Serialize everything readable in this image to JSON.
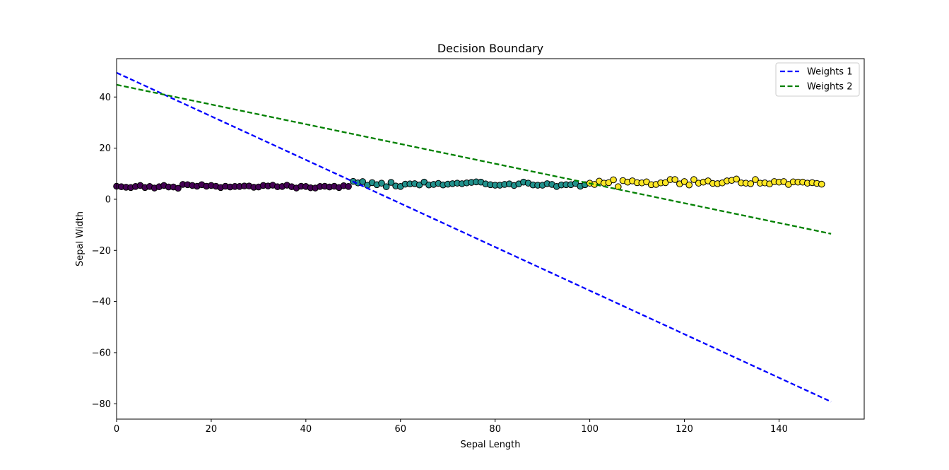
{
  "chart_data": {
    "type": "scatter",
    "title": "Decision Boundary",
    "xlabel": "Sepal Length",
    "ylabel": "Sepal Width",
    "xlim": [
      0,
      158
    ],
    "ylim": [
      -86,
      55
    ],
    "xticks": [
      0,
      20,
      40,
      60,
      80,
      100,
      120,
      140
    ],
    "yticks": [
      -80,
      -60,
      -40,
      -20,
      0,
      20,
      40
    ],
    "xtick_labels": [
      "0",
      "20",
      "40",
      "60",
      "80",
      "100",
      "120",
      "140"
    ],
    "ytick_labels": [
      "−80",
      "−60",
      "−40",
      "−20",
      "0",
      "20",
      "40"
    ],
    "grid": false,
    "legend_position": "top-right",
    "class_colors": [
      "#440154",
      "#21918c",
      "#fde725"
    ],
    "points": [
      [
        0,
        5.1,
        0
      ],
      [
        1,
        4.9,
        0
      ],
      [
        2,
        4.7,
        0
      ],
      [
        3,
        4.6,
        0
      ],
      [
        4,
        5.0,
        0
      ],
      [
        5,
        5.4,
        0
      ],
      [
        6,
        4.6,
        0
      ],
      [
        7,
        5.0,
        0
      ],
      [
        8,
        4.4,
        0
      ],
      [
        9,
        4.9,
        0
      ],
      [
        10,
        5.4,
        0
      ],
      [
        11,
        4.8,
        0
      ],
      [
        12,
        4.8,
        0
      ],
      [
        13,
        4.3,
        0
      ],
      [
        14,
        5.8,
        0
      ],
      [
        15,
        5.7,
        0
      ],
      [
        16,
        5.4,
        0
      ],
      [
        17,
        5.1,
        0
      ],
      [
        18,
        5.7,
        0
      ],
      [
        19,
        5.1,
        0
      ],
      [
        20,
        5.4,
        0
      ],
      [
        21,
        5.1,
        0
      ],
      [
        22,
        4.6,
        0
      ],
      [
        23,
        5.1,
        0
      ],
      [
        24,
        4.8,
        0
      ],
      [
        25,
        5.0,
        0
      ],
      [
        26,
        5.0,
        0
      ],
      [
        27,
        5.2,
        0
      ],
      [
        28,
        5.2,
        0
      ],
      [
        29,
        4.7,
        0
      ],
      [
        30,
        4.8,
        0
      ],
      [
        31,
        5.4,
        0
      ],
      [
        32,
        5.2,
        0
      ],
      [
        33,
        5.5,
        0
      ],
      [
        34,
        4.9,
        0
      ],
      [
        35,
        5.0,
        0
      ],
      [
        36,
        5.5,
        0
      ],
      [
        37,
        4.9,
        0
      ],
      [
        38,
        4.4,
        0
      ],
      [
        39,
        5.1,
        0
      ],
      [
        40,
        5.0,
        0
      ],
      [
        41,
        4.5,
        0
      ],
      [
        42,
        4.4,
        0
      ],
      [
        43,
        5.0,
        0
      ],
      [
        44,
        5.1,
        0
      ],
      [
        45,
        4.8,
        0
      ],
      [
        46,
        5.1,
        0
      ],
      [
        47,
        4.6,
        0
      ],
      [
        48,
        5.3,
        0
      ],
      [
        49,
        5.0,
        0
      ],
      [
        50,
        7.0,
        1
      ],
      [
        51,
        6.4,
        1
      ],
      [
        52,
        6.9,
        1
      ],
      [
        53,
        5.5,
        1
      ],
      [
        54,
        6.5,
        1
      ],
      [
        55,
        5.7,
        1
      ],
      [
        56,
        6.3,
        1
      ],
      [
        57,
        4.9,
        1
      ],
      [
        58,
        6.6,
        1
      ],
      [
        59,
        5.2,
        1
      ],
      [
        60,
        5.0,
        1
      ],
      [
        61,
        5.9,
        1
      ],
      [
        62,
        6.0,
        1
      ],
      [
        63,
        6.1,
        1
      ],
      [
        64,
        5.6,
        1
      ],
      [
        65,
        6.7,
        1
      ],
      [
        66,
        5.6,
        1
      ],
      [
        67,
        5.8,
        1
      ],
      [
        68,
        6.2,
        1
      ],
      [
        69,
        5.6,
        1
      ],
      [
        70,
        5.9,
        1
      ],
      [
        71,
        6.1,
        1
      ],
      [
        72,
        6.3,
        1
      ],
      [
        73,
        6.1,
        1
      ],
      [
        74,
        6.4,
        1
      ],
      [
        75,
        6.6,
        1
      ],
      [
        76,
        6.8,
        1
      ],
      [
        77,
        6.7,
        1
      ],
      [
        78,
        6.0,
        1
      ],
      [
        79,
        5.7,
        1
      ],
      [
        80,
        5.5,
        1
      ],
      [
        81,
        5.5,
        1
      ],
      [
        82,
        5.8,
        1
      ],
      [
        83,
        6.0,
        1
      ],
      [
        84,
        5.4,
        1
      ],
      [
        85,
        6.0,
        1
      ],
      [
        86,
        6.7,
        1
      ],
      [
        87,
        6.3,
        1
      ],
      [
        88,
        5.6,
        1
      ],
      [
        89,
        5.5,
        1
      ],
      [
        90,
        5.5,
        1
      ],
      [
        91,
        6.1,
        1
      ],
      [
        92,
        5.8,
        1
      ],
      [
        93,
        5.0,
        1
      ],
      [
        94,
        5.6,
        1
      ],
      [
        95,
        5.7,
        1
      ],
      [
        96,
        5.7,
        1
      ],
      [
        97,
        6.2,
        1
      ],
      [
        98,
        5.1,
        1
      ],
      [
        99,
        5.7,
        1
      ],
      [
        100,
        6.3,
        2
      ],
      [
        101,
        5.8,
        2
      ],
      [
        102,
        7.1,
        2
      ],
      [
        103,
        6.3,
        2
      ],
      [
        104,
        6.5,
        2
      ],
      [
        105,
        7.6,
        2
      ],
      [
        106,
        4.9,
        2
      ],
      [
        107,
        7.3,
        2
      ],
      [
        108,
        6.7,
        2
      ],
      [
        109,
        7.2,
        2
      ],
      [
        110,
        6.5,
        2
      ],
      [
        111,
        6.4,
        2
      ],
      [
        112,
        6.8,
        2
      ],
      [
        113,
        5.7,
        2
      ],
      [
        114,
        5.8,
        2
      ],
      [
        115,
        6.4,
        2
      ],
      [
        116,
        6.5,
        2
      ],
      [
        117,
        7.7,
        2
      ],
      [
        118,
        7.7,
        2
      ],
      [
        119,
        6.0,
        2
      ],
      [
        120,
        6.9,
        2
      ],
      [
        121,
        5.6,
        2
      ],
      [
        122,
        7.7,
        2
      ],
      [
        123,
        6.3,
        2
      ],
      [
        124,
        6.7,
        2
      ],
      [
        125,
        7.2,
        2
      ],
      [
        126,
        6.2,
        2
      ],
      [
        127,
        6.1,
        2
      ],
      [
        128,
        6.4,
        2
      ],
      [
        129,
        7.2,
        2
      ],
      [
        130,
        7.4,
        2
      ],
      [
        131,
        7.9,
        2
      ],
      [
        132,
        6.4,
        2
      ],
      [
        133,
        6.3,
        2
      ],
      [
        134,
        6.1,
        2
      ],
      [
        135,
        7.7,
        2
      ],
      [
        136,
        6.3,
        2
      ],
      [
        137,
        6.4,
        2
      ],
      [
        138,
        6.0,
        2
      ],
      [
        139,
        6.9,
        2
      ],
      [
        140,
        6.7,
        2
      ],
      [
        141,
        6.9,
        2
      ],
      [
        142,
        5.8,
        2
      ],
      [
        143,
        6.8,
        2
      ],
      [
        144,
        6.7,
        2
      ],
      [
        145,
        6.7,
        2
      ],
      [
        146,
        6.3,
        2
      ],
      [
        147,
        6.5,
        2
      ],
      [
        148,
        6.2,
        2
      ],
      [
        149,
        5.9,
        2
      ]
    ],
    "series": [
      {
        "name": "Weights 1",
        "type": "line",
        "style": "dashed",
        "color": "#0000ff",
        "x": [
          0,
          151
        ],
        "y": [
          49.5,
          -79.2
        ]
      },
      {
        "name": "Weights 2",
        "type": "line",
        "style": "dashed",
        "color": "#008000",
        "x": [
          0,
          151
        ],
        "y": [
          44.8,
          -13.5
        ]
      }
    ]
  }
}
